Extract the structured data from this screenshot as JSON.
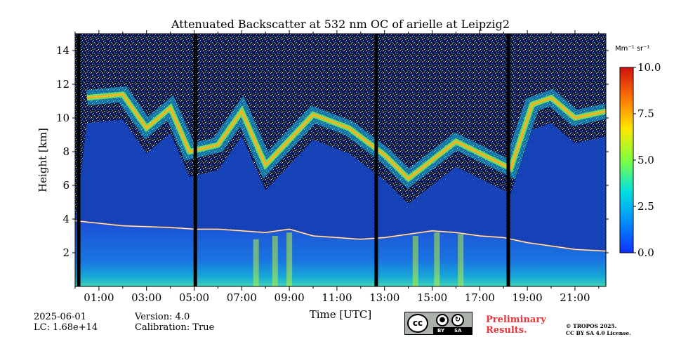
{
  "chart_data": {
    "type": "heatmap",
    "title": "Attenuated Backscatter at 532 nm OC of arielle at Leipzig2",
    "xlabel": "Time [UTC]",
    "ylabel": "Height [km]",
    "x_tick_labels": [
      "01:00",
      "03:00",
      "05:00",
      "07:00",
      "09:00",
      "11:00",
      "13:00",
      "15:00",
      "17:00",
      "19:00",
      "21:00"
    ],
    "x_range_hours": [
      0.0,
      22.3
    ],
    "y_ticks": [
      2,
      4,
      6,
      8,
      10,
      12,
      14
    ],
    "ylim": [
      0,
      15
    ],
    "colorbar": {
      "unit": "Mm⁻¹ sr⁻¹",
      "ticks": [
        "0.0",
        "2.5",
        "5.0",
        "7.5",
        "10.0"
      ],
      "range": [
        0.0,
        10.0
      ],
      "colormap": "jet"
    },
    "data_gaps_hours": [
      0.15,
      5.05,
      12.65,
      18.2
    ],
    "features": [
      {
        "type": "boundary_layer_top",
        "time_hours": [
          0,
          2,
          4,
          5,
          6,
          7,
          8,
          9,
          10,
          11,
          12,
          13,
          14,
          15,
          16,
          17,
          18,
          19,
          20,
          21,
          22.3
        ],
        "height_km": [
          3.9,
          3.6,
          3.5,
          3.4,
          3.4,
          3.3,
          3.2,
          3.4,
          3.0,
          2.9,
          2.8,
          2.9,
          3.1,
          3.3,
          3.2,
          3.0,
          2.9,
          2.6,
          2.4,
          2.2,
          2.1
        ]
      },
      {
        "type": "cirrus_band",
        "time_hours": [
          0.5,
          2,
          3,
          4,
          4.8,
          6,
          7,
          8,
          10,
          11.5,
          13,
          14,
          16,
          18.3,
          19.2,
          20,
          21,
          22.3
        ],
        "height_km": [
          11.2,
          11.4,
          9.4,
          10.6,
          8.0,
          8.4,
          10.4,
          7.2,
          10.2,
          9.4,
          7.8,
          6.4,
          8.6,
          7.0,
          10.8,
          11.2,
          10.0,
          10.4
        ]
      }
    ]
  },
  "footer": {
    "date": "2025-06-01",
    "lc": "LC: 1.68e+14",
    "version": "Version: 4.0",
    "calibration": "Calibration: True",
    "preliminary_line1": "Preliminary",
    "preliminary_line2": "Results.",
    "copyright_line1": "© TROPOS 2025.",
    "copyright_line2": "CC BY SA 4.0 License.",
    "cc_badge": {
      "cc": "cc",
      "by": "BY",
      "sa": "SA"
    }
  }
}
